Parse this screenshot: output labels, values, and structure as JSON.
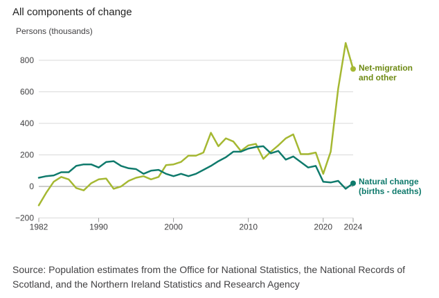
{
  "title": "All components of change",
  "source": "Source: Population estimates from the Office for National Statistics, the National Records of Scotland, and the Northern Ireland Statistics and Research Agency",
  "colors": {
    "net_migration": "#a5b832",
    "net_migration_label": "#6e8a14",
    "natural_change": "#0f7a6c",
    "grid": "#d9d9d9",
    "zero": "#9a9a9a"
  },
  "chart_data": {
    "type": "line",
    "title": "All components of change",
    "ylabel": "Persons (thousands)",
    "xlabel": "",
    "ylim": [
      -200,
      900
    ],
    "yticks": [
      -200,
      0,
      200,
      400,
      600,
      800
    ],
    "ytick_labels": [
      "−200",
      "0",
      "200",
      "400",
      "600",
      "800"
    ],
    "xticks": [
      1982,
      1990,
      2000,
      2010,
      2020,
      2024
    ],
    "xlim": [
      1982,
      2024
    ],
    "x": [
      1982,
      1983,
      1984,
      1985,
      1986,
      1987,
      1988,
      1989,
      1990,
      1991,
      1992,
      1993,
      1994,
      1995,
      1996,
      1997,
      1998,
      1999,
      2000,
      2001,
      2002,
      2003,
      2004,
      2005,
      2006,
      2007,
      2008,
      2009,
      2010,
      2011,
      2012,
      2013,
      2014,
      2015,
      2016,
      2017,
      2018,
      2019,
      2020,
      2021,
      2022,
      2023,
      2024
    ],
    "series": [
      {
        "name": "Net-migration and other",
        "label_lines": [
          "Net-migration",
          "and other"
        ],
        "values": [
          -120,
          -40,
          30,
          60,
          45,
          -10,
          -25,
          20,
          45,
          50,
          -15,
          0,
          35,
          55,
          65,
          45,
          60,
          135,
          140,
          155,
          195,
          195,
          215,
          340,
          255,
          305,
          285,
          225,
          260,
          270,
          175,
          220,
          260,
          305,
          330,
          205,
          205,
          215,
          80,
          220,
          620,
          910,
          745
        ]
      },
      {
        "name": "Natural change (births - deaths)",
        "label_lines": [
          "Natural change",
          "(births - deaths)"
        ],
        "values": [
          55,
          65,
          70,
          90,
          90,
          130,
          140,
          140,
          120,
          155,
          160,
          130,
          115,
          110,
          80,
          100,
          105,
          80,
          65,
          80,
          65,
          80,
          105,
          130,
          160,
          185,
          220,
          220,
          240,
          250,
          255,
          210,
          225,
          170,
          190,
          155,
          120,
          130,
          30,
          25,
          35,
          -15,
          20
        ]
      }
    ]
  }
}
